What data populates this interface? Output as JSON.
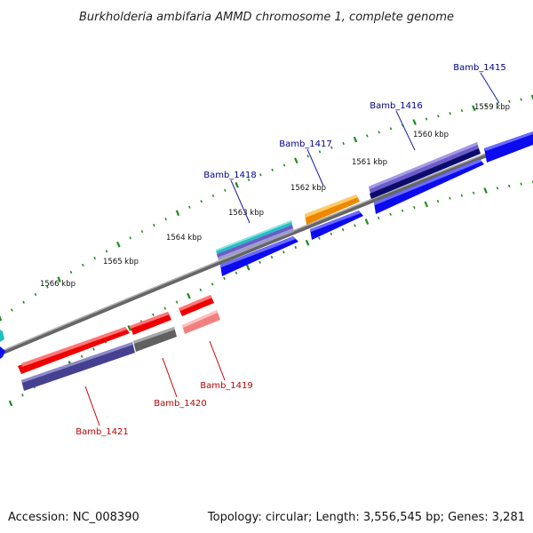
{
  "title": "Burkholderia ambifaria AMMD chromosome 1, complete genome",
  "footer": {
    "accession": "Accession: NC_008390",
    "topology": "Topology: circular; Length: 3,556,545 bp; Genes: 3,281"
  },
  "ticks": [
    "1559 kbp",
    "1560 kbp",
    "1561 kbp",
    "1562 kbp",
    "1563 kbp",
    "1564 kbp",
    "1565 kbp",
    "1566 kbp"
  ],
  "genes_upper": [
    "Bamb_1415",
    "Bamb_1416",
    "Bamb_1417",
    "Bamb_1418"
  ],
  "genes_lower": [
    "Bamb_1419",
    "Bamb_1420",
    "Bamb_1421"
  ],
  "colors": {
    "backbone": "#888888",
    "tick_dots": "#1f8a1f",
    "label_upper": "#00008b",
    "label_lower": "#c00000",
    "blue": "#0b0bee",
    "navy": "#0b0b6e",
    "purple": "#6b5cc9",
    "dark_purple": "#45408f",
    "orange": "#ee8800",
    "teal": "#22c0c0",
    "red": "#ee0000",
    "light_red": "#f08080",
    "gray": "#606060"
  }
}
